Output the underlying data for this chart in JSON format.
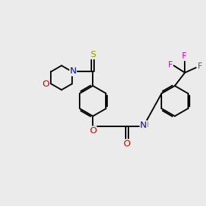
{
  "bg_color": "#ebebeb",
  "bond_color": "#000000",
  "bond_width": 1.5,
  "atom_colors": {
    "S": "#999900",
    "N": "#0000cc",
    "O": "#cc0000",
    "F": "#cc00cc",
    "H": "#777777",
    "C": "#000000"
  },
  "font_size": 8.5,
  "fig_size": [
    3.0,
    3.0
  ],
  "dpi": 100
}
